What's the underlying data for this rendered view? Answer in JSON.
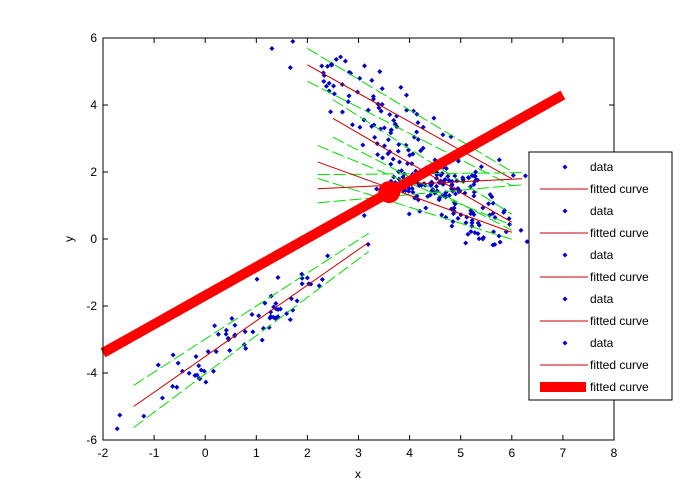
{
  "chart_data": {
    "type": "scatter",
    "title": "",
    "xlabel": "x",
    "ylabel": "y",
    "xlim": [
      -2,
      8
    ],
    "ylim": [
      -6,
      6
    ],
    "xticks": [
      "-2",
      "-1",
      "0",
      "1",
      "2",
      "3",
      "4",
      "5",
      "6",
      "7",
      "8"
    ],
    "yticks": [
      "-6",
      "-4",
      "-2",
      "0",
      "2",
      "4",
      "6"
    ],
    "grid": false,
    "legend_position": "right",
    "colors": {
      "data": "#0000cc",
      "fit": "#cc0000",
      "ci": "#00dd00",
      "overall": "#ff0000"
    },
    "legend": [
      {
        "label": "data",
        "style": "marker"
      },
      {
        "label": "fitted curve",
        "style": "line"
      },
      {
        "label": "data",
        "style": "marker"
      },
      {
        "label": "fitted curve",
        "style": "line"
      },
      {
        "label": "data",
        "style": "marker"
      },
      {
        "label": "fitted curve",
        "style": "line"
      },
      {
        "label": "data",
        "style": "marker"
      },
      {
        "label": "fitted curve",
        "style": "line"
      },
      {
        "label": "data",
        "style": "marker"
      },
      {
        "label": "fitted curve",
        "style": "line"
      },
      {
        "label": "fitted curve",
        "style": "thick"
      }
    ],
    "clusters": [
      {
        "cx": 0.8,
        "cy": -3.0,
        "sx": 1.0,
        "sy": 0.9,
        "n": 75,
        "seed": 11,
        "fit_from": [
          -1.4,
          -5.0
        ],
        "fit_to": [
          3.2,
          -0.1
        ],
        "ci_offset": 0.45
      },
      {
        "cx": 3.2,
        "cy": 4.2,
        "sx": 0.7,
        "sy": 0.8,
        "n": 60,
        "seed": 23,
        "fit_from": [
          2.0,
          5.2
        ],
        "fit_to": [
          6.0,
          1.8
        ],
        "ci_offset": 0.35
      },
      {
        "cx": 4.3,
        "cy": 2.6,
        "sx": 0.6,
        "sy": 0.7,
        "n": 70,
        "seed": 37,
        "fit_from": [
          2.5,
          3.6
        ],
        "fit_to": [
          6.0,
          0.5
        ],
        "ci_offset": 0.4
      },
      {
        "cx": 4.6,
        "cy": 1.6,
        "sx": 0.7,
        "sy": 0.5,
        "n": 65,
        "seed": 49,
        "fit_from": [
          2.2,
          1.5
        ],
        "fit_to": [
          6.2,
          1.8
        ],
        "ci_offset": 0.3
      },
      {
        "cx": 5.0,
        "cy": 1.2,
        "sx": 0.7,
        "sy": 0.9,
        "n": 55,
        "seed": 61,
        "fit_from": [
          2.2,
          2.3
        ],
        "fit_to": [
          6.0,
          0.2
        ],
        "ci_offset": 0.35
      }
    ],
    "overall_fit": {
      "from": [
        -2.0,
        -3.4
      ],
      "to": [
        7.0,
        4.3
      ]
    },
    "highlight_point": {
      "x": 3.6,
      "y": 1.4
    }
  }
}
